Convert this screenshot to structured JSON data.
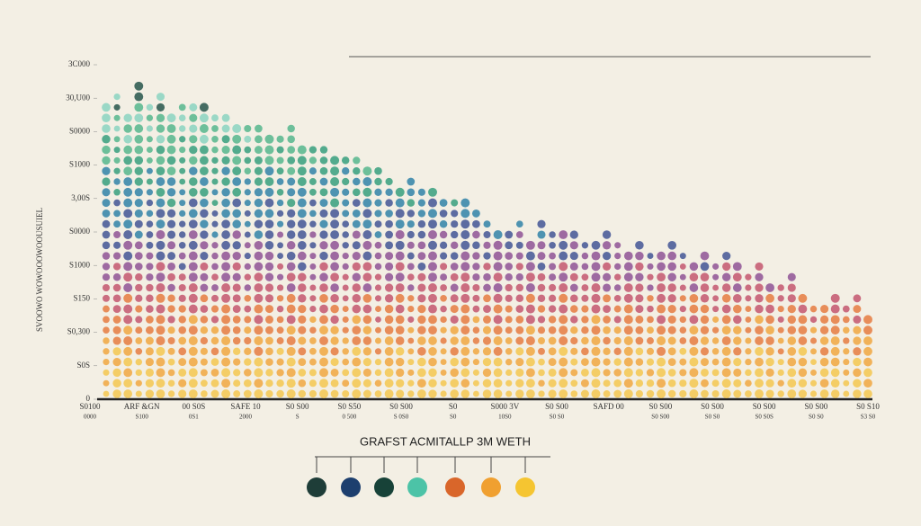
{
  "chart_data": {
    "type": "dotcolumns",
    "title": "GRAFST ACMITALLP 3M WETH",
    "y_label": "SVOOWO WOWOOOWOOUSUIEL",
    "ylim": [
      0,
      10
    ],
    "yticks": [
      0,
      {
        "value": 1,
        "label": "S0S"
      },
      {
        "value": 2,
        "label": "S0,300"
      },
      {
        "value": 3,
        "label": "S150"
      },
      {
        "value": 4,
        "label": "S1000"
      },
      {
        "value": 5,
        "label": "S0000"
      },
      {
        "value": 6,
        "label": "3,00S"
      },
      {
        "value": 7,
        "label": "S1000"
      },
      {
        "value": 8,
        "label": "S0000"
      },
      {
        "value": 9,
        "label": "30,U00"
      },
      {
        "value": 10,
        "label": "3C000"
      }
    ],
    "x_labels": [
      {
        "top": "S0100",
        "bottom": "0000"
      },
      {
        "top": "ARF &GN",
        "bottom": "S100"
      },
      {
        "top": "00 S0S",
        "bottom": "0S1"
      },
      {
        "top": "SAFE 10",
        "bottom": "2000"
      },
      {
        "top": "S0 S00",
        "bottom": "S"
      },
      {
        "top": "S0 S50",
        "bottom": "0 500"
      },
      {
        "top": "S0 S00",
        "bottom": "S 0S0"
      },
      {
        "top": "S0",
        "bottom": "S0"
      },
      {
        "top": "S000 3V",
        "bottom": "10S0"
      },
      {
        "top": "S0 S00",
        "bottom": "S0 S0"
      },
      {
        "top": "SAFD 00"
      },
      {
        "top": "S0 S00",
        "bottom": "S0 S00"
      },
      {
        "top": "S0 S00",
        "bottom": "S0 S0"
      },
      {
        "top": "S0 S00",
        "bottom": "S0 S0S"
      },
      {
        "top": "S0 S00",
        "bottom": "S0 S0"
      },
      {
        "top": "S0 S10",
        "bottom": "S3 S0"
      }
    ],
    "values": [
      8.9,
      9.2,
      8.7,
      9.4,
      9.0,
      9.1,
      8.6,
      8.9,
      8.8,
      9.0,
      8.5,
      8.6,
      8.3,
      8.1,
      8.4,
      8.0,
      7.8,
      8.1,
      7.7,
      7.5,
      7.6,
      7.3,
      7.2,
      7.4,
      7.0,
      6.9,
      6.7,
      6.5,
      6.6,
      6.3,
      6.2,
      6.1,
      6.0,
      5.9,
      5.6,
      5.4,
      5.2,
      5.0,
      5.3,
      4.9,
      5.3,
      5.2,
      5.0,
      5.1,
      4.9,
      4.8,
      5.0,
      4.7,
      4.6,
      4.9,
      4.5,
      4.4,
      4.7,
      4.3,
      4.2,
      4.5,
      4.1,
      4.3,
      4.0,
      3.8,
      4.2,
      3.6,
      3.4,
      3.9,
      3.2,
      3.0,
      2.8,
      3.3,
      2.7,
      3.1,
      2.5
    ],
    "palette": [
      "#f4c64a",
      "#f0a53a",
      "#e5773a",
      "#c2506a",
      "#8b4d92",
      "#3c4f93",
      "#2a7fa6",
      "#2f9c7a",
      "#4fb58a",
      "#86d3bf",
      "#1f4f45"
    ],
    "legend_colors": [
      "#1e3d38",
      "#1d3f6e",
      "#174238",
      "#4cc3a7",
      "#d9662a",
      "#f0a030",
      "#f5c531"
    ]
  }
}
